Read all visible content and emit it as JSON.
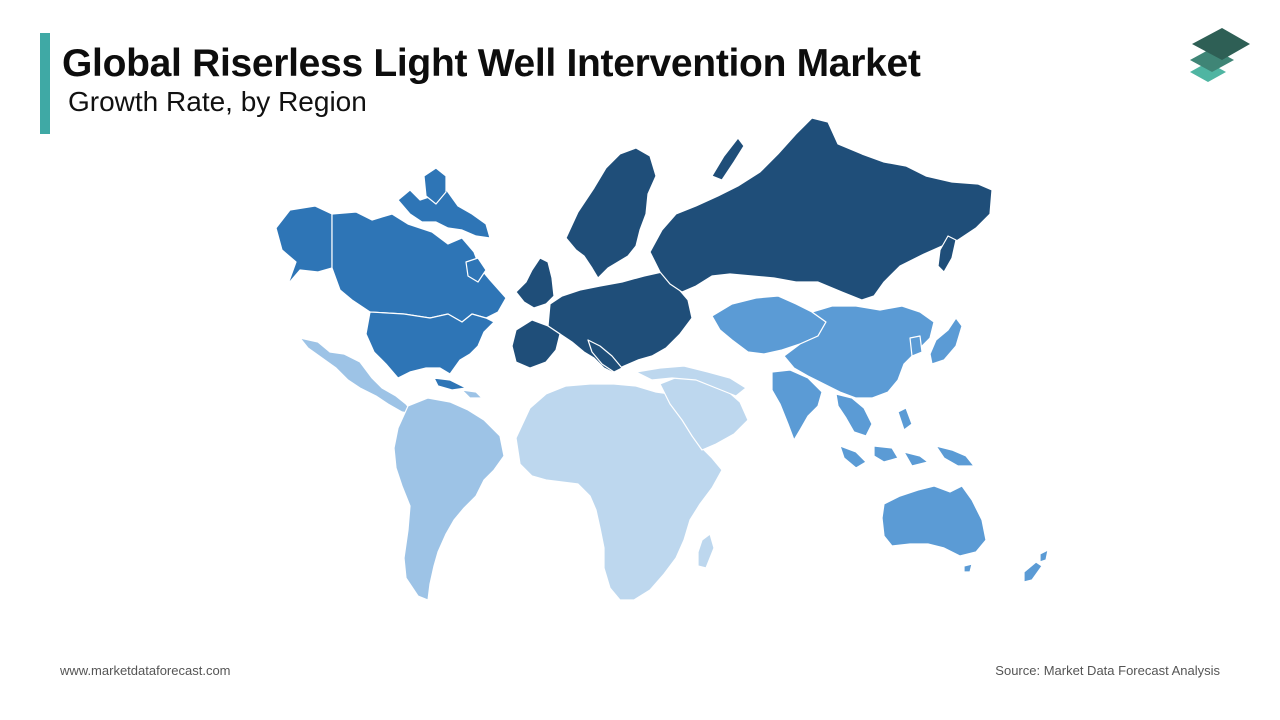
{
  "header": {
    "title": "Global Riserless Light Well Intervention Market",
    "subtitle": "Growth Rate, by Region"
  },
  "footer": {
    "website": "www.marketdataforecast.com",
    "source": "Source: Market Data Forecast Analysis"
  },
  "colors": {
    "accent": "#3fa9a5",
    "logo_top": "#2e5f55",
    "logo_mid": "#3f8576",
    "logo_bottom": "#4fb5a2"
  },
  "regions": [
    {
      "name": "North America",
      "color": "#2e75b6"
    },
    {
      "name": "Latin America",
      "color": "#9dc3e6"
    },
    {
      "name": "Europe",
      "color": "#1f4e79"
    },
    {
      "name": "Asia Pacific",
      "color": "#5b9bd5"
    },
    {
      "name": "Middle East and Africa",
      "color": "#bdd7ee"
    }
  ]
}
